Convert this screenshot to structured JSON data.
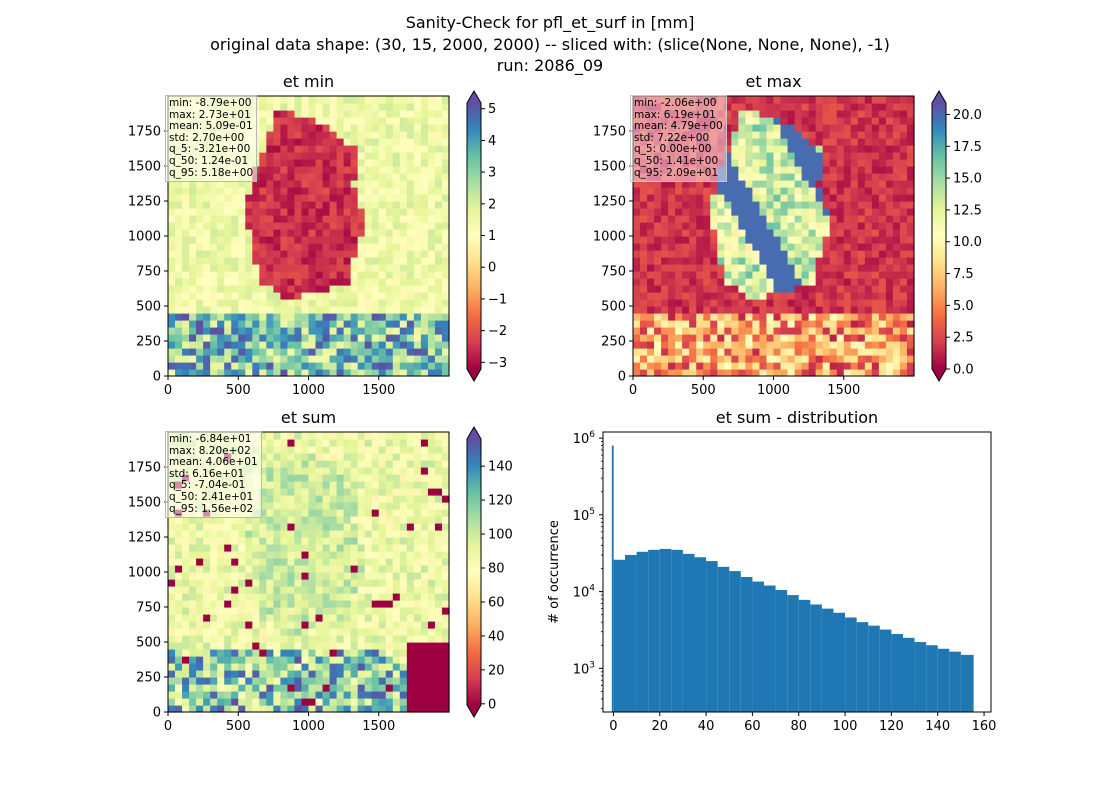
{
  "figure": {
    "title_line1": "Sanity-Check for pfl_et_surf in [mm]",
    "title_line2": "original data shape: (30, 15, 2000, 2000) -- sliced with: (slice(None, None, None), -1)",
    "title_line3": "run: 2086_09"
  },
  "colors": {
    "bar": "#1f77b4",
    "colormap": "Spectral",
    "spectral_stops": [
      "#9e0142",
      "#d53e4f",
      "#f46d43",
      "#fdae61",
      "#fee08b",
      "#ffffbf",
      "#e6f598",
      "#abdda4",
      "#66c2a5",
      "#3288bd",
      "#5e4fa2"
    ]
  },
  "panels": {
    "et_min": {
      "title": "et min",
      "stats": [
        "min: -8.79e+00",
        "max: 2.73e+01",
        "mean: 5.09e-01",
        "std: 2.70e+00",
        "q_5: -3.21e+00",
        "q_50: 1.24e-01",
        "q_95: 5.18e+00"
      ]
    },
    "et_max": {
      "title": "et max",
      "stats": [
        "min: -2.06e+00",
        "max: 6.19e+01",
        "mean: 4.79e+00",
        "std: 7.22e+00",
        "q_5: 0.00e+00",
        "q_50: 1.41e+00",
        "q_95: 2.09e+01"
      ]
    },
    "et_sum": {
      "title": "et sum",
      "stats": [
        "min: -6.84e+01",
        "max: 8.20e+02",
        "mean: 4.06e+01",
        "std: 6.16e+01",
        "q_5: -7.04e-01",
        "q_50: 2.41e+01",
        "q_95: 1.56e+02"
      ]
    },
    "hist": {
      "title": "et sum - distribution"
    }
  },
  "chart_data": [
    {
      "type": "heatmap",
      "title": "et min",
      "x_ticks": [
        "0",
        "500",
        "1000",
        "1500"
      ],
      "y_ticks": [
        "0",
        "250",
        "500",
        "750",
        "1000",
        "1250",
        "1500",
        "1750"
      ],
      "xlim": [
        0,
        2000
      ],
      "ylim": [
        0,
        2000
      ],
      "colorbar": {
        "vmin": -3.21,
        "vmax": 5.18,
        "ticks": [
          "5",
          "4",
          "3",
          "2",
          "1",
          "0",
          "−1",
          "−2",
          "−3"
        ],
        "tick_values": [
          5,
          4,
          3,
          2,
          1,
          0,
          -1,
          -2,
          -3
        ],
        "extend": "both",
        "colormap": "Spectral"
      }
    },
    {
      "type": "heatmap",
      "title": "et max",
      "x_ticks": [
        "0",
        "500",
        "1000",
        "1500"
      ],
      "y_ticks": [
        "0",
        "250",
        "500",
        "750",
        "1000",
        "1250",
        "1500",
        "1750"
      ],
      "xlim": [
        0,
        2000
      ],
      "ylim": [
        0,
        2000
      ],
      "colorbar": {
        "vmin": 0.0,
        "vmax": 20.9,
        "ticks": [
          "20.0",
          "17.5",
          "15.0",
          "12.5",
          "10.0",
          "7.5",
          "5.0",
          "2.5",
          "0.0"
        ],
        "tick_values": [
          20,
          17.5,
          15,
          12.5,
          10,
          7.5,
          5,
          2.5,
          0
        ],
        "extend": "both",
        "colormap": "Spectral"
      }
    },
    {
      "type": "heatmap",
      "title": "et sum",
      "x_ticks": [
        "0",
        "500",
        "1000",
        "1500"
      ],
      "y_ticks": [
        "0",
        "250",
        "500",
        "750",
        "1000",
        "1250",
        "1500",
        "1750"
      ],
      "xlim": [
        0,
        2000
      ],
      "ylim": [
        0,
        2000
      ],
      "colorbar": {
        "vmin": -0.704,
        "vmax": 156,
        "ticks": [
          "140",
          "120",
          "100",
          "80",
          "60",
          "40",
          "20",
          "0"
        ],
        "tick_values": [
          140,
          120,
          100,
          80,
          60,
          40,
          20,
          0
        ],
        "extend": "both",
        "colormap": "Spectral"
      }
    },
    {
      "type": "bar",
      "title": "et sum - distribution",
      "xlabel": "",
      "ylabel": "# of occurrence",
      "y_scale": "log",
      "xlim": [
        -4.5,
        163
      ],
      "ylim": [
        270,
        1200000
      ],
      "x_ticks": [
        "0",
        "20",
        "40",
        "60",
        "80",
        "100",
        "120",
        "140",
        "160"
      ],
      "y_ticks": [
        "10^3",
        "10^4",
        "10^5",
        "10^6"
      ],
      "bins": [
        {
          "x0": -0.7,
          "x1": 0.1,
          "count": 800000
        },
        {
          "x0": 0.1,
          "x1": 5,
          "count": 26000
        },
        {
          "x0": 5,
          "x1": 10,
          "count": 30000
        },
        {
          "x0": 10,
          "x1": 15,
          "count": 33000
        },
        {
          "x0": 15,
          "x1": 20,
          "count": 35000
        },
        {
          "x0": 20,
          "x1": 25,
          "count": 36000
        },
        {
          "x0": 25,
          "x1": 30,
          "count": 35000
        },
        {
          "x0": 30,
          "x1": 35,
          "count": 31000
        },
        {
          "x0": 35,
          "x1": 40,
          "count": 28000
        },
        {
          "x0": 40,
          "x1": 45,
          "count": 25000
        },
        {
          "x0": 45,
          "x1": 50,
          "count": 21000
        },
        {
          "x0": 50,
          "x1": 55,
          "count": 18500
        },
        {
          "x0": 55,
          "x1": 60,
          "count": 15500
        },
        {
          "x0": 60,
          "x1": 65,
          "count": 13500
        },
        {
          "x0": 65,
          "x1": 70,
          "count": 12000
        },
        {
          "x0": 70,
          "x1": 75,
          "count": 10500
        },
        {
          "x0": 75,
          "x1": 80,
          "count": 9000
        },
        {
          "x0": 80,
          "x1": 85,
          "count": 7800
        },
        {
          "x0": 85,
          "x1": 90,
          "count": 6800
        },
        {
          "x0": 90,
          "x1": 95,
          "count": 6000
        },
        {
          "x0": 95,
          "x1": 100,
          "count": 5300
        },
        {
          "x0": 100,
          "x1": 105,
          "count": 4600
        },
        {
          "x0": 105,
          "x1": 110,
          "count": 4000
        },
        {
          "x0": 110,
          "x1": 115,
          "count": 3600
        },
        {
          "x0": 115,
          "x1": 120,
          "count": 3200
        },
        {
          "x0": 120,
          "x1": 125,
          "count": 2800
        },
        {
          "x0": 125,
          "x1": 130,
          "count": 2500
        },
        {
          "x0": 130,
          "x1": 135,
          "count": 2200
        },
        {
          "x0": 135,
          "x1": 140,
          "count": 2000
        },
        {
          "x0": 140,
          "x1": 145,
          "count": 1800
        },
        {
          "x0": 145,
          "x1": 150,
          "count": 1650
        },
        {
          "x0": 150,
          "x1": 155.5,
          "count": 1500
        }
      ]
    }
  ]
}
